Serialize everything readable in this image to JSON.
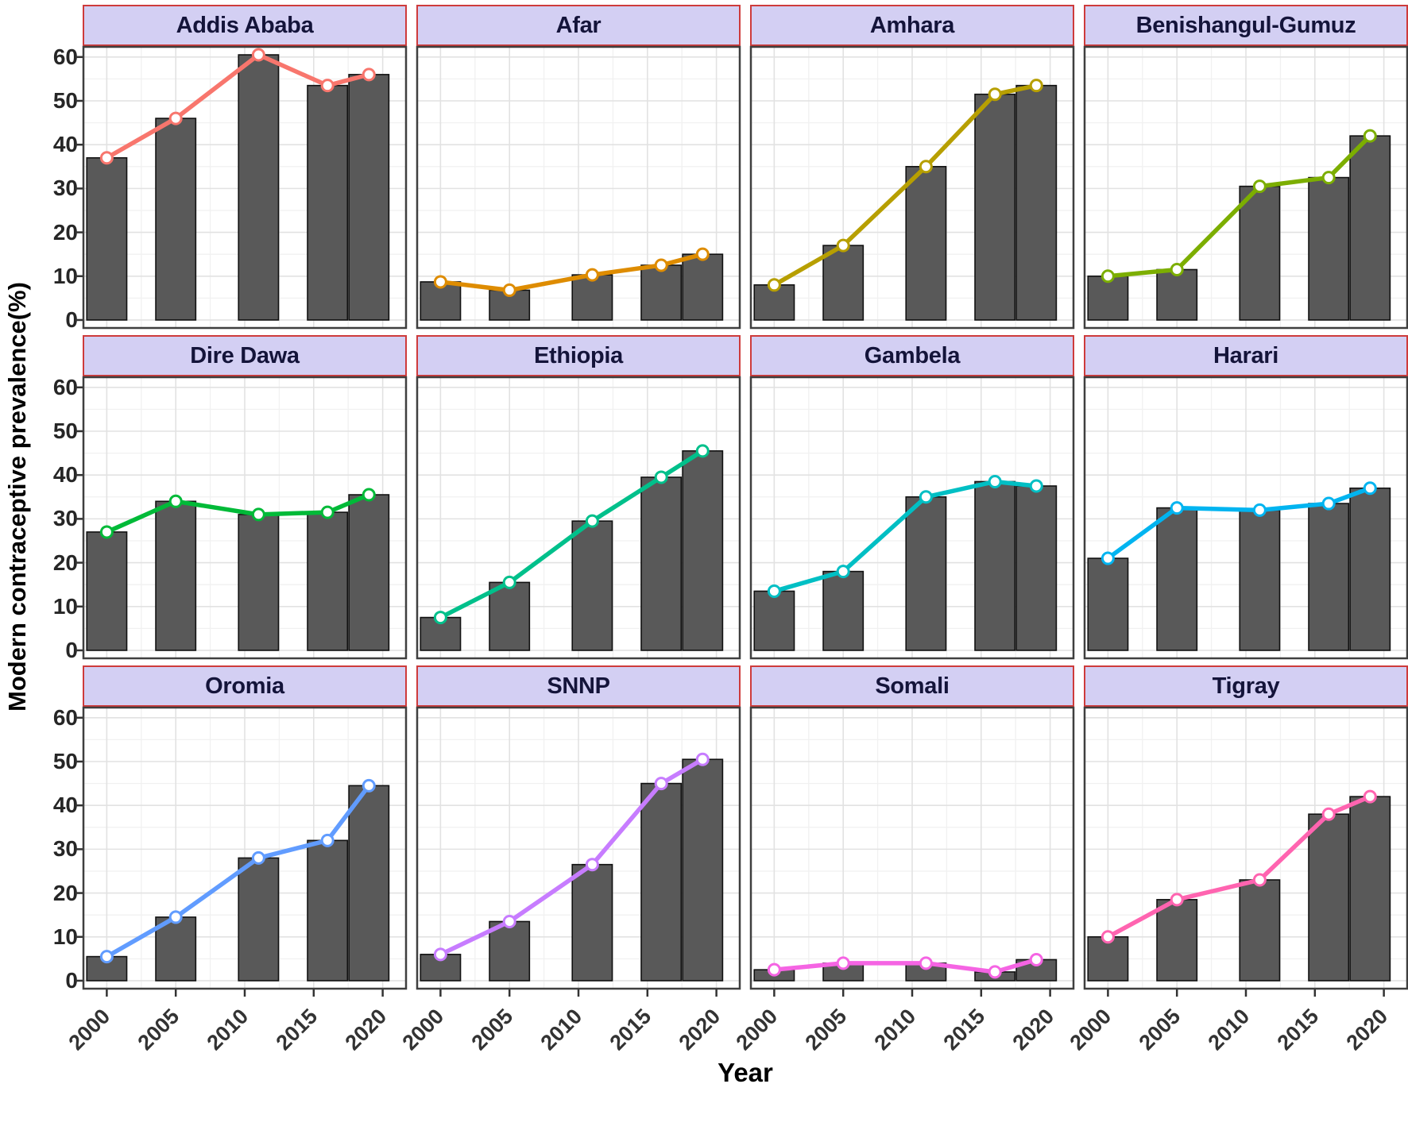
{
  "figure": {
    "ylabel": "Modern contraceptive prevalence(%)",
    "xlabel": "Year"
  },
  "chart_data": {
    "type": "bar",
    "overlay": "line",
    "facet_layout": "3 rows x 4 cols",
    "x": [
      2000,
      2005,
      2011,
      2016,
      2019
    ],
    "x_axis_ticks": [
      "2000",
      "2005",
      "2010",
      "2015",
      "2020"
    ],
    "x_axis_tick_years": [
      2000,
      2005,
      2010,
      2015,
      2020
    ],
    "y_axis_ticks": [
      "0",
      "10",
      "20",
      "30",
      "40",
      "50",
      "60"
    ],
    "y_axis_tick_values": [
      0,
      10,
      20,
      30,
      40,
      50,
      60
    ],
    "ylim": [
      0,
      65
    ],
    "xlabel": "Year",
    "ylabel": "Modern contraceptive prevalence(%)",
    "grid": true,
    "legend": "none",
    "bar_color": "#595959",
    "bar_edge_color": "#111111",
    "strip_bg": "#D3CFF3",
    "strip_border": "#CE3B3B",
    "panel_border": "#3F3F3F",
    "point_fill": "#FFFFFF",
    "facets": [
      {
        "name": "Addis Ababa",
        "color": "#F8766D",
        "values": [
          37,
          46,
          60.5,
          53.5,
          56
        ]
      },
      {
        "name": "Afar",
        "color": "#DE8C00",
        "values": [
          8.7,
          6.8,
          10.3,
          12.5,
          15
        ]
      },
      {
        "name": "Amhara",
        "color": "#B79F00",
        "values": [
          8,
          17,
          35,
          51.5,
          53.5
        ]
      },
      {
        "name": "Benishangul-Gumuz",
        "color": "#7CAE00",
        "values": [
          10,
          11.5,
          30.5,
          32.5,
          42
        ]
      },
      {
        "name": "Dire Dawa",
        "color": "#00BA38",
        "values": [
          27,
          34,
          31,
          31.5,
          35.5
        ]
      },
      {
        "name": "Ethiopia",
        "color": "#00C08B",
        "values": [
          7.5,
          15.5,
          29.5,
          39.5,
          45.5
        ]
      },
      {
        "name": "Gambela",
        "color": "#00BFC4",
        "values": [
          13.5,
          18,
          35,
          38.5,
          37.5
        ]
      },
      {
        "name": "Harari",
        "color": "#00B4F0",
        "values": [
          21,
          32.5,
          32,
          33.5,
          37
        ]
      },
      {
        "name": "Oromia",
        "color": "#619CFF",
        "values": [
          5.5,
          14.5,
          28,
          32,
          44.5
        ]
      },
      {
        "name": "SNNP",
        "color": "#C77CFF",
        "values": [
          6,
          13.5,
          26.5,
          45,
          50.5
        ]
      },
      {
        "name": "Somali",
        "color": "#F564E3",
        "values": [
          2.5,
          4,
          4,
          2,
          4.8
        ]
      },
      {
        "name": "Tigray",
        "color": "#FF64B0",
        "values": [
          10,
          18.5,
          23,
          38,
          42
        ]
      }
    ]
  }
}
